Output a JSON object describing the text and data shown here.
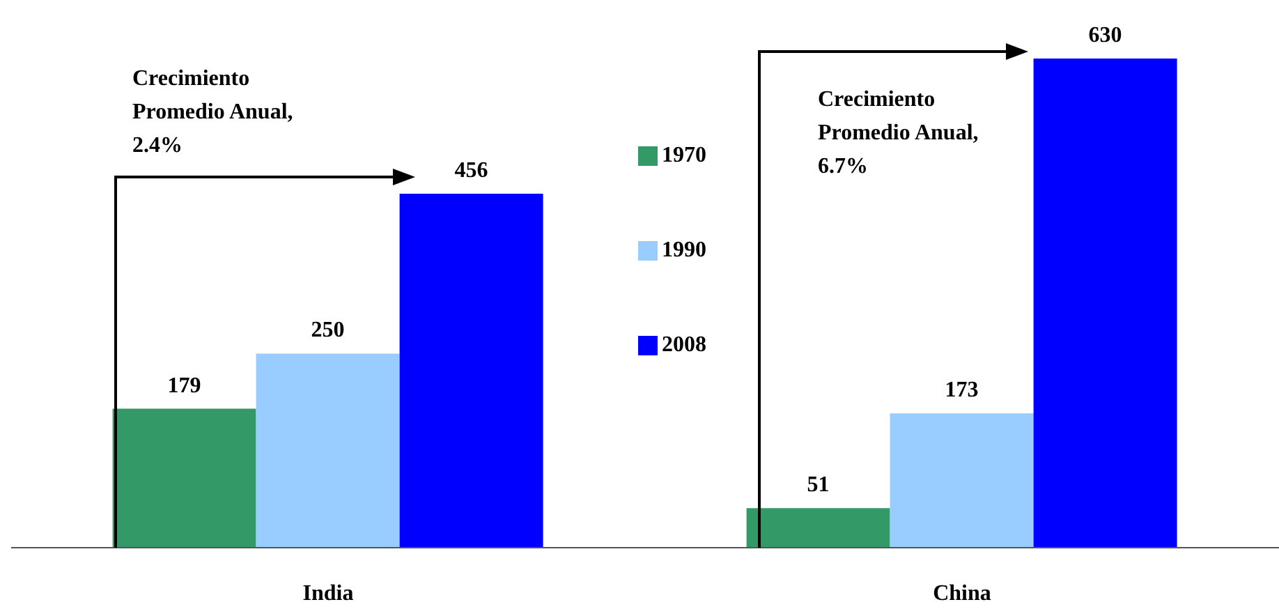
{
  "chart_data": {
    "type": "bar",
    "categories": [
      "India",
      "China"
    ],
    "series": [
      {
        "name": "1970",
        "color": "#339966",
        "values": [
          179,
          51
        ]
      },
      {
        "name": "1990",
        "color": "#99ccff",
        "values": [
          250,
          173
        ]
      },
      {
        "name": "2008",
        "color": "#0000ff",
        "values": [
          456,
          630
        ]
      }
    ],
    "data_labels": true,
    "legend": "center",
    "grid": false,
    "annotations": [
      "Crecimiento Promedio Anual, 2.4%",
      "Crecimiento Promedio Anual, 6.7%"
    ]
  }
}
